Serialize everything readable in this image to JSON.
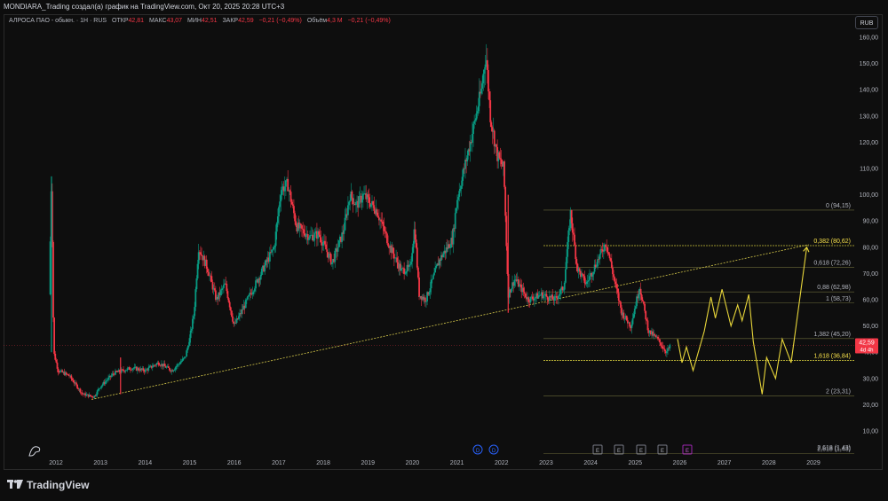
{
  "header": {
    "title": "MONDIARA_Trading создал(а) график на TradingView.com, Окт 20, 2025 20:28 UTC+3"
  },
  "legend": {
    "symbol": "АЛРОСА ПАО - обыкн. · 1Н · RUS",
    "open_label": "ОТКР",
    "open": "42,81",
    "high_label": "МАКС",
    "high": "43,07",
    "low_label": "МИН",
    "low": "42,51",
    "close_label": "ЗАКР",
    "close": "42,59",
    "change": "−0,21 (−0,49%)",
    "volume_label": "Объём",
    "volume": "4,3 M",
    "volume_change": "−0,21 (−0,49%)"
  },
  "currency_button": "RUB",
  "footer": {
    "brand": "TradingView"
  },
  "price_badge": {
    "price": "42,59",
    "countdown": "4d 4h"
  },
  "event_markers": {
    "dividend": [
      "D",
      "D"
    ],
    "earnings": [
      "E",
      "E",
      "E",
      "E"
    ],
    "upcoming": [
      "E"
    ]
  },
  "colors": {
    "up": "#089981",
    "down": "#f23645",
    "fib": "#c9c13a",
    "projection": "#e8d63a",
    "trendline": "#d6c94a",
    "badge": "#f23645"
  },
  "chart_data": {
    "type": "candlestick",
    "x_tick_labels": [
      "2012",
      "2013",
      "2014",
      "2015",
      "2016",
      "2017",
      "2018",
      "2019",
      "2020",
      "2021",
      "2022",
      "2023",
      "2024",
      "2025",
      "2026",
      "2027",
      "2028",
      "2029"
    ],
    "y_tick_labels": [
      "10,00",
      "20,00",
      "30,00",
      "40,00",
      "50,00",
      "60,00",
      "70,00",
      "80,00",
      "90,00",
      "100,00",
      "110,00",
      "120,00",
      "130,00",
      "140,00",
      "150,00",
      "160,00"
    ],
    "ylim": [
      2,
      163
    ],
    "price_path": [
      [
        2011.85,
        62
      ],
      [
        2011.9,
        107
      ],
      [
        2011.95,
        40
      ],
      [
        2012.05,
        33
      ],
      [
        2012.3,
        31
      ],
      [
        2012.6,
        24
      ],
      [
        2012.85,
        23
      ],
      [
        2013.0,
        27
      ],
      [
        2013.3,
        32
      ],
      [
        2013.7,
        34
      ],
      [
        2014.0,
        33
      ],
      [
        2014.3,
        36
      ],
      [
        2014.6,
        33
      ],
      [
        2014.9,
        38
      ],
      [
        2015.0,
        45
      ],
      [
        2015.1,
        55
      ],
      [
        2015.2,
        80
      ],
      [
        2015.4,
        72
      ],
      [
        2015.6,
        60
      ],
      [
        2015.8,
        66
      ],
      [
        2016.0,
        50
      ],
      [
        2016.3,
        60
      ],
      [
        2016.6,
        70
      ],
      [
        2016.9,
        80
      ],
      [
        2017.05,
        102
      ],
      [
        2017.2,
        104
      ],
      [
        2017.4,
        88
      ],
      [
        2017.7,
        84
      ],
      [
        2017.9,
        85
      ],
      [
        2018.2,
        74
      ],
      [
        2018.45,
        86
      ],
      [
        2018.6,
        100
      ],
      [
        2018.75,
        96
      ],
      [
        2018.9,
        100
      ],
      [
        2019.2,
        94
      ],
      [
        2019.5,
        80
      ],
      [
        2019.75,
        71
      ],
      [
        2019.95,
        72
      ],
      [
        2020.05,
        88
      ],
      [
        2020.15,
        62
      ],
      [
        2020.3,
        60
      ],
      [
        2020.6,
        75
      ],
      [
        2020.9,
        83
      ],
      [
        2021.0,
        98
      ],
      [
        2021.3,
        120
      ],
      [
        2021.55,
        140
      ],
      [
        2021.65,
        154
      ],
      [
        2021.75,
        130
      ],
      [
        2021.9,
        115
      ],
      [
        2022.05,
        110
      ],
      [
        2022.15,
        62
      ],
      [
        2022.3,
        68
      ],
      [
        2022.6,
        60
      ],
      [
        2022.9,
        62
      ],
      [
        2023.2,
        60
      ],
      [
        2023.4,
        65
      ],
      [
        2023.55,
        93
      ],
      [
        2023.7,
        72
      ],
      [
        2023.9,
        66
      ],
      [
        2024.1,
        73
      ],
      [
        2024.35,
        82
      ],
      [
        2024.55,
        66
      ],
      [
        2024.7,
        55
      ],
      [
        2024.9,
        50
      ],
      [
        2025.1,
        65
      ],
      [
        2025.3,
        48
      ],
      [
        2025.5,
        45
      ],
      [
        2025.7,
        40
      ],
      [
        2025.8,
        42.59
      ]
    ],
    "projection": [
      [
        2025.95,
        45
      ],
      [
        2026.05,
        36
      ],
      [
        2026.15,
        42
      ],
      [
        2026.3,
        33
      ],
      [
        2026.55,
        48
      ],
      [
        2026.7,
        61
      ],
      [
        2026.8,
        53
      ],
      [
        2026.95,
        64
      ],
      [
        2027.15,
        50
      ],
      [
        2027.3,
        58
      ],
      [
        2027.4,
        52
      ],
      [
        2027.55,
        62
      ],
      [
        2027.65,
        44
      ],
      [
        2027.85,
        24
      ],
      [
        2027.95,
        38
      ],
      [
        2028.15,
        30
      ],
      [
        2028.3,
        45
      ],
      [
        2028.5,
        36
      ],
      [
        2028.85,
        80
      ]
    ],
    "trendline": [
      [
        2012.8,
        22
      ],
      [
        2028.9,
        81
      ]
    ],
    "fib_levels": [
      {
        "label": "0 (94,15)",
        "value": 94.15,
        "highlight": false
      },
      {
        "label": "0,382 (80,62)",
        "value": 80.62,
        "highlight": true
      },
      {
        "label": "0,618 (72,26)",
        "value": 72.26,
        "highlight": false
      },
      {
        "label": "0,88 (62,98)",
        "value": 62.98,
        "highlight": false
      },
      {
        "label": "1 (58,73)",
        "value": 58.73,
        "highlight": false
      },
      {
        "label": "1,382 (45,20)",
        "value": 45.2,
        "highlight": false
      },
      {
        "label": "1,618 (36,84)",
        "value": 36.84,
        "highlight": true
      },
      {
        "label": "2 (23,31)",
        "value": 23.31,
        "highlight": false
      },
      {
        "label": "2,618 (1,43)",
        "value": 1.43,
        "highlight": false
      }
    ],
    "last_price": 42.59,
    "grid": false
  }
}
